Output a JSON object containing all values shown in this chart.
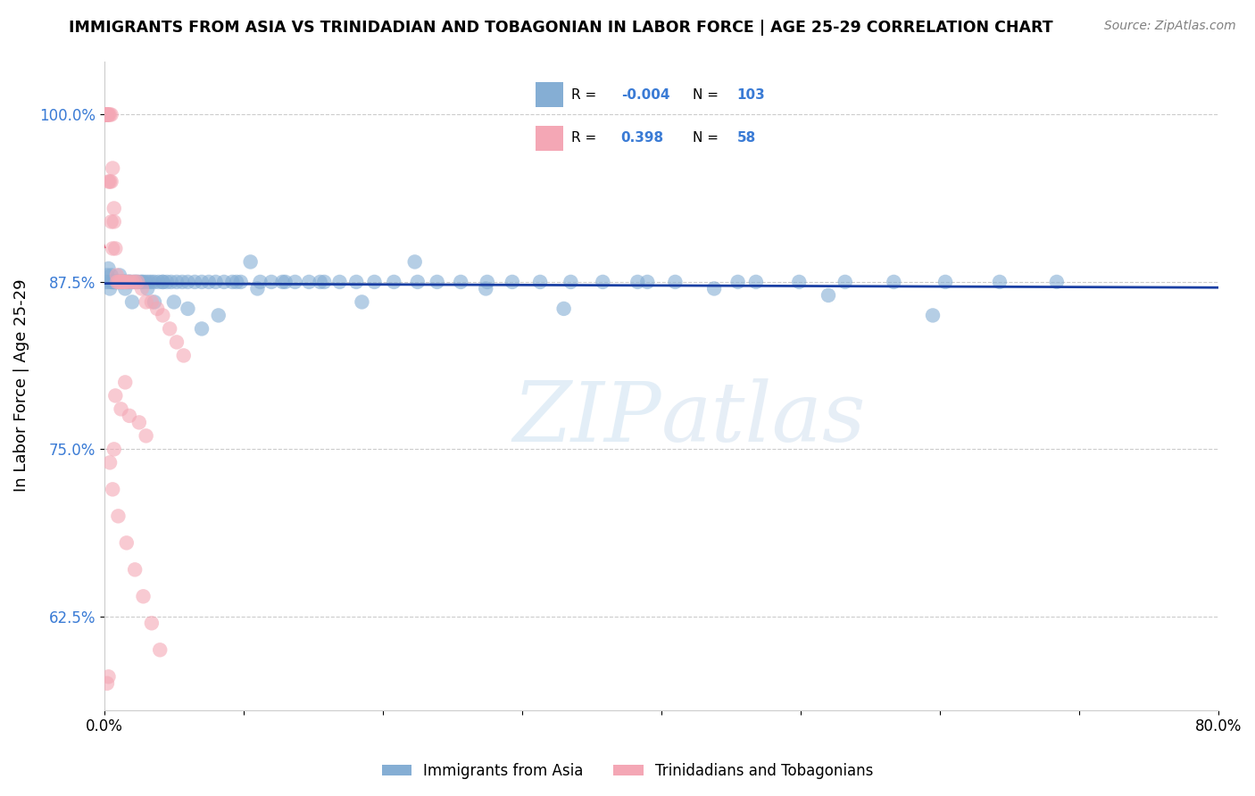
{
  "title": "IMMIGRANTS FROM ASIA VS TRINIDADIAN AND TOBAGONIAN IN LABOR FORCE | AGE 25-29 CORRELATION CHART",
  "source": "Source: ZipAtlas.com",
  "ylabel": "In Labor Force | Age 25-29",
  "xlim": [
    0.0,
    0.8
  ],
  "ylim": [
    0.555,
    1.04
  ],
  "yticks": [
    0.625,
    0.75,
    0.875,
    1.0
  ],
  "ytick_labels": [
    "62.5%",
    "75.0%",
    "87.5%",
    "100.0%"
  ],
  "xticks": [
    0.0,
    0.1,
    0.2,
    0.3,
    0.4,
    0.5,
    0.6,
    0.7,
    0.8
  ],
  "xtick_labels": [
    "0.0%",
    "",
    "",
    "",
    "",
    "",
    "",
    "",
    "80.0%"
  ],
  "blue_R": -0.004,
  "blue_N": 103,
  "pink_R": 0.398,
  "pink_N": 58,
  "blue_color": "#85aed4",
  "pink_color": "#f4a7b5",
  "blue_trend_color": "#1a3fa3",
  "pink_trend_color": "#d94f6a",
  "background_color": "#FFFFFF",
  "blue_scatter_x": [
    0.001,
    0.002,
    0.003,
    0.003,
    0.004,
    0.005,
    0.005,
    0.006,
    0.007,
    0.008,
    0.009,
    0.01,
    0.011,
    0.012,
    0.013,
    0.014,
    0.015,
    0.016,
    0.017,
    0.018,
    0.019,
    0.021,
    0.022,
    0.024,
    0.026,
    0.028,
    0.03,
    0.032,
    0.034,
    0.036,
    0.039,
    0.042,
    0.045,
    0.048,
    0.052,
    0.056,
    0.06,
    0.065,
    0.07,
    0.075,
    0.08,
    0.086,
    0.092,
    0.098,
    0.105,
    0.112,
    0.12,
    0.128,
    0.137,
    0.147,
    0.158,
    0.169,
    0.181,
    0.194,
    0.208,
    0.223,
    0.239,
    0.256,
    0.274,
    0.293,
    0.313,
    0.335,
    0.358,
    0.383,
    0.41,
    0.438,
    0.468,
    0.499,
    0.532,
    0.567,
    0.604,
    0.643,
    0.684,
    0.595,
    0.52,
    0.455,
    0.39,
    0.33,
    0.275,
    0.225,
    0.185,
    0.155,
    0.13,
    0.11,
    0.095,
    0.082,
    0.07,
    0.06,
    0.05,
    0.042,
    0.036,
    0.031,
    0.027,
    0.023,
    0.02,
    0.018,
    0.015,
    0.013,
    0.011,
    0.009,
    0.008,
    0.007,
    0.006
  ],
  "blue_scatter_y": [
    0.875,
    0.88,
    0.885,
    0.875,
    0.87,
    0.875,
    0.88,
    0.875,
    0.875,
    0.875,
    0.875,
    0.875,
    0.88,
    0.875,
    0.875,
    0.875,
    0.875,
    0.875,
    0.875,
    0.875,
    0.875,
    0.875,
    0.875,
    0.875,
    0.875,
    0.875,
    0.875,
    0.875,
    0.875,
    0.875,
    0.875,
    0.875,
    0.875,
    0.875,
    0.875,
    0.875,
    0.875,
    0.875,
    0.875,
    0.875,
    0.875,
    0.875,
    0.875,
    0.875,
    0.89,
    0.875,
    0.875,
    0.875,
    0.875,
    0.875,
    0.875,
    0.875,
    0.875,
    0.875,
    0.875,
    0.89,
    0.875,
    0.875,
    0.87,
    0.875,
    0.875,
    0.875,
    0.875,
    0.875,
    0.875,
    0.87,
    0.875,
    0.875,
    0.875,
    0.875,
    0.875,
    0.875,
    0.875,
    0.85,
    0.865,
    0.875,
    0.875,
    0.855,
    0.875,
    0.875,
    0.86,
    0.875,
    0.875,
    0.87,
    0.875,
    0.85,
    0.84,
    0.855,
    0.86,
    0.875,
    0.86,
    0.87,
    0.875,
    0.875,
    0.86,
    0.875,
    0.87,
    0.875,
    0.875,
    0.875,
    0.875,
    0.875,
    0.875
  ],
  "pink_scatter_x": [
    0.0005,
    0.001,
    0.001,
    0.0015,
    0.002,
    0.002,
    0.002,
    0.003,
    0.003,
    0.003,
    0.004,
    0.004,
    0.005,
    0.005,
    0.005,
    0.006,
    0.006,
    0.007,
    0.007,
    0.008,
    0.009,
    0.009,
    0.01,
    0.011,
    0.012,
    0.013,
    0.014,
    0.015,
    0.016,
    0.018,
    0.02,
    0.022,
    0.024,
    0.027,
    0.03,
    0.034,
    0.038,
    0.042,
    0.047,
    0.052,
    0.057,
    0.015,
    0.008,
    0.012,
    0.018,
    0.025,
    0.03,
    0.007,
    0.004,
    0.006,
    0.01,
    0.016,
    0.022,
    0.028,
    0.034,
    0.04,
    0.003,
    0.002
  ],
  "pink_scatter_y": [
    1.0,
    1.0,
    1.0,
    1.0,
    1.0,
    1.0,
    1.0,
    1.0,
    1.0,
    0.95,
    1.0,
    0.95,
    1.0,
    0.95,
    0.92,
    0.96,
    0.9,
    0.93,
    0.92,
    0.9,
    0.88,
    0.875,
    0.875,
    0.875,
    0.875,
    0.875,
    0.875,
    0.875,
    0.875,
    0.875,
    0.875,
    0.875,
    0.875,
    0.87,
    0.86,
    0.86,
    0.855,
    0.85,
    0.84,
    0.83,
    0.82,
    0.8,
    0.79,
    0.78,
    0.775,
    0.77,
    0.76,
    0.75,
    0.74,
    0.72,
    0.7,
    0.68,
    0.66,
    0.64,
    0.62,
    0.6,
    0.58,
    0.575
  ]
}
